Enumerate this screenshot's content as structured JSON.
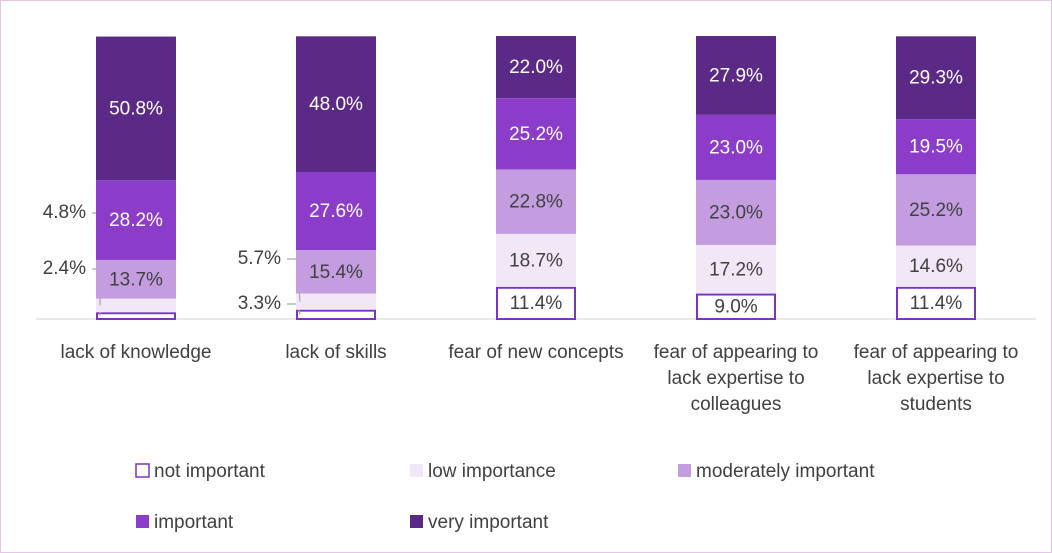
{
  "chart_data": {
    "type": "stacked_bar",
    "categories": [
      "lack of knowledge",
      "lack of skills",
      "fear of new concepts",
      "fear of appearing to lack expertise to colleagues",
      "fear of appearing to lack expertise to students"
    ],
    "series": [
      {
        "name": "not important",
        "color": "#ffffff",
        "stroke": "#7a35c0",
        "values": [
          2.4,
          3.3,
          11.4,
          9.0,
          11.4
        ],
        "value_labels": [
          "2.4%",
          "3.3%",
          "11.4%",
          "9.0%",
          "11.4%"
        ]
      },
      {
        "name": "low importance",
        "color": "#f1e7f7",
        "values": [
          4.8,
          5.7,
          18.7,
          17.2,
          14.6
        ],
        "value_labels": [
          "4.8%",
          "5.7%",
          "18.7%",
          "17.2%",
          "14.6%"
        ]
      },
      {
        "name": "moderately important",
        "color": "#c49de0",
        "values": [
          13.7,
          15.4,
          22.8,
          23.0,
          25.2
        ],
        "value_labels": [
          "13.7%",
          "15.4%",
          "22.8%",
          "23.0%",
          "25.2%"
        ]
      },
      {
        "name": "important",
        "color": "#8b3dc9",
        "values": [
          28.2,
          27.6,
          25.2,
          23.0,
          19.5
        ],
        "value_labels": [
          "28.2%",
          "27.6%",
          "25.2%",
          "23.0%",
          "19.5%"
        ]
      },
      {
        "name": "very important",
        "color": "#5b2a86",
        "values": [
          50.8,
          48.0,
          22.0,
          27.9,
          29.3
        ],
        "value_labels": [
          "50.8%",
          "48.0%",
          "22.0%",
          "27.9%",
          "29.3%"
        ]
      }
    ]
  }
}
